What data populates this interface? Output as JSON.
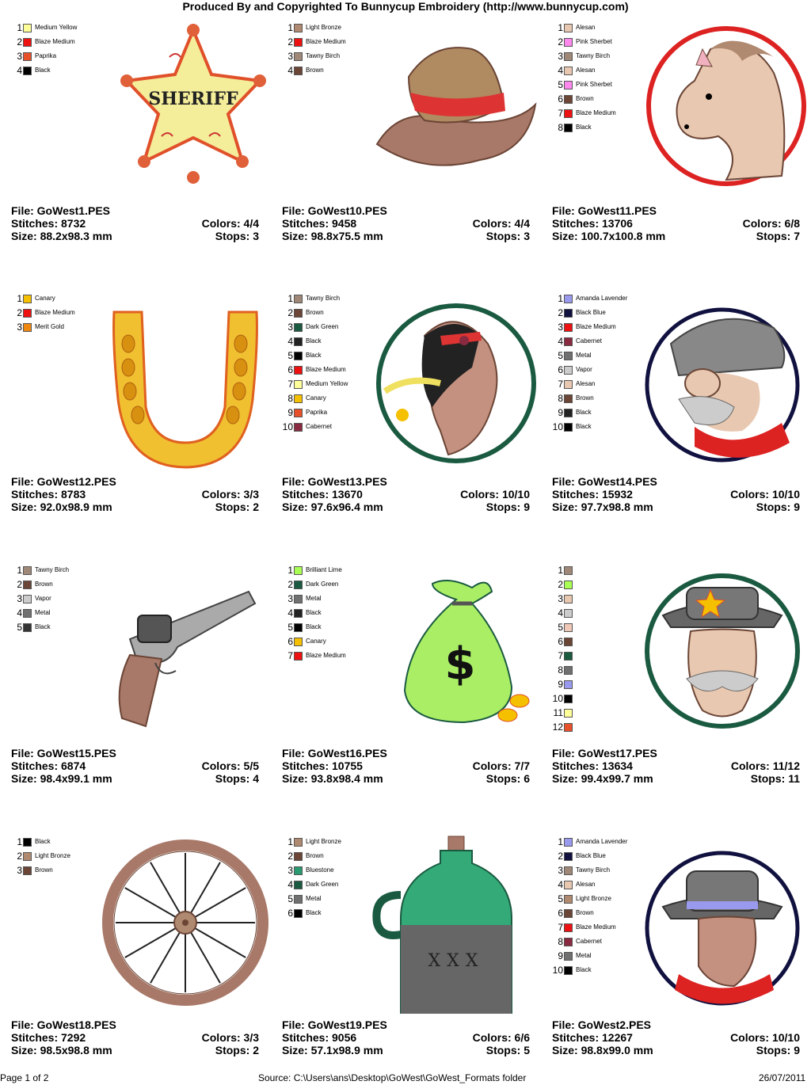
{
  "header": {
    "title": "Produced By and Copyrighted To Bunnycup Embroidery (http://www.bunnycup.com)"
  },
  "labels": {
    "file": "File: ",
    "stitches": "Stitches: ",
    "size": "Size: ",
    "colors": "Colors: ",
    "stops": "Stops: "
  },
  "footer": {
    "page": "Page 1 of 2",
    "source": "Source: C:\\Users\\ans\\Desktop\\GoWest\\GoWest_Formats folder",
    "date": "26/07/2011"
  },
  "designs": [
    {
      "file": "GoWest1.PES",
      "stitches": "8732",
      "size": "88.2x98.3 mm",
      "colors": "4/4",
      "stops": "3",
      "icon": "sheriff-badge",
      "badge_text": "SHERIFF",
      "palette": [
        {
          "n": "1",
          "name": "Medium Yellow",
          "color": "#ffff99"
        },
        {
          "n": "2",
          "name": "Blaze Medium",
          "color": "#ee1111"
        },
        {
          "n": "3",
          "name": "Paprika",
          "color": "#e8502a"
        },
        {
          "n": "4",
          "name": "Black",
          "color": "#000000"
        }
      ]
    },
    {
      "file": "GoWest10.PES",
      "stitches": "9458",
      "size": "98.8x75.5 mm",
      "colors": "4/4",
      "stops": "3",
      "icon": "cowboy-hat",
      "palette": [
        {
          "n": "1",
          "name": "Light Bronze",
          "color": "#b08a70"
        },
        {
          "n": "2",
          "name": "Blaze Medium",
          "color": "#ee1111"
        },
        {
          "n": "3",
          "name": "Tawny Birch",
          "color": "#a08878"
        },
        {
          "n": "4",
          "name": "Brown",
          "color": "#6b4536"
        }
      ]
    },
    {
      "file": "GoWest11.PES",
      "stitches": "13706",
      "size": "100.7x100.8 mm",
      "colors": "6/8",
      "stops": "7",
      "icon": "horse-head",
      "palette": [
        {
          "n": "1",
          "name": "Alesan",
          "color": "#e8c8b0"
        },
        {
          "n": "2",
          "name": "Pink Sherbet",
          "color": "#ff88ee"
        },
        {
          "n": "3",
          "name": "Tawny Birch",
          "color": "#a08878"
        },
        {
          "n": "4",
          "name": "Alesan",
          "color": "#e8c8b0"
        },
        {
          "n": "5",
          "name": "Pink Sherbet",
          "color": "#ff88ee"
        },
        {
          "n": "6",
          "name": "Brown",
          "color": "#6b4536"
        },
        {
          "n": "7",
          "name": "Blaze Medium",
          "color": "#ee1111"
        },
        {
          "n": "8",
          "name": "Black",
          "color": "#000000"
        }
      ]
    },
    {
      "file": "GoWest12.PES",
      "stitches": "8783",
      "size": "92.0x98.9 mm",
      "colors": "3/3",
      "stops": "2",
      "icon": "horseshoe",
      "palette": [
        {
          "n": "1",
          "name": "Canary",
          "color": "#f5c000"
        },
        {
          "n": "2",
          "name": "Blaze Medium",
          "color": "#ee1111"
        },
        {
          "n": "3",
          "name": "Merit Gold",
          "color": "#f08810"
        }
      ]
    },
    {
      "file": "GoWest13.PES",
      "stitches": "13670",
      "size": "97.6x96.4 mm",
      "colors": "10/10",
      "stops": "9",
      "icon": "native-portrait",
      "palette": [
        {
          "n": "1",
          "name": "Tawny Birch",
          "color": "#a08878"
        },
        {
          "n": "2",
          "name": "Brown",
          "color": "#6b4536"
        },
        {
          "n": "3",
          "name": "Dark Green",
          "color": "#1a5a40"
        },
        {
          "n": "4",
          "name": "Black",
          "color": "#222222"
        },
        {
          "n": "5",
          "name": "Black",
          "color": "#000000"
        },
        {
          "n": "6",
          "name": "Blaze Medium",
          "color": "#ee1111"
        },
        {
          "n": "7",
          "name": "Medium Yellow",
          "color": "#ffff99"
        },
        {
          "n": "8",
          "name": "Canary",
          "color": "#f5c000"
        },
        {
          "n": "9",
          "name": "Paprika",
          "color": "#e8502a"
        },
        {
          "n": "10",
          "name": "Cabernet",
          "color": "#8a2a40"
        }
      ]
    },
    {
      "file": "GoWest14.PES",
      "stitches": "15932",
      "size": "97.7x98.8 mm",
      "colors": "10/10",
      "stops": "9",
      "icon": "bandit-portrait",
      "palette": [
        {
          "n": "1",
          "name": "Amanda Lavender",
          "color": "#9999ee"
        },
        {
          "n": "2",
          "name": "Black Blue",
          "color": "#111140"
        },
        {
          "n": "3",
          "name": "Blaze Medium",
          "color": "#ee1111"
        },
        {
          "n": "4",
          "name": "Cabernet",
          "color": "#8a2a40"
        },
        {
          "n": "5",
          "name": "Metal",
          "color": "#707070"
        },
        {
          "n": "6",
          "name": "Vapor",
          "color": "#cccccc"
        },
        {
          "n": "7",
          "name": "Alesan",
          "color": "#e8c8b0"
        },
        {
          "n": "8",
          "name": "Brown",
          "color": "#6b4536"
        },
        {
          "n": "9",
          "name": "Black",
          "color": "#222222"
        },
        {
          "n": "10",
          "name": "Black",
          "color": "#000000"
        }
      ]
    },
    {
      "file": "GoWest15.PES",
      "stitches": "6874",
      "size": "98.4x99.1 mm",
      "colors": "5/5",
      "stops": "4",
      "icon": "revolver",
      "palette": [
        {
          "n": "1",
          "name": "Tawny Birch",
          "color": "#a08878"
        },
        {
          "n": "2",
          "name": "Brown",
          "color": "#6b4536"
        },
        {
          "n": "3",
          "name": "Vapor",
          "color": "#cccccc"
        },
        {
          "n": "4",
          "name": "Metal",
          "color": "#707070"
        },
        {
          "n": "5",
          "name": "Black",
          "color": "#333333"
        }
      ]
    },
    {
      "file": "GoWest16.PES",
      "stitches": "10755",
      "size": "93.8x98.4 mm",
      "colors": "7/7",
      "stops": "6",
      "icon": "money-bag",
      "bag_symbol": "$",
      "palette": [
        {
          "n": "1",
          "name": "Brilliant Lime",
          "color": "#aaff55"
        },
        {
          "n": "2",
          "name": "Dark Green",
          "color": "#1a5a40"
        },
        {
          "n": "3",
          "name": "Metal",
          "color": "#707070"
        },
        {
          "n": "4",
          "name": "Black",
          "color": "#222222"
        },
        {
          "n": "5",
          "name": "Black",
          "color": "#000000"
        },
        {
          "n": "6",
          "name": "Canary",
          "color": "#f5c000"
        },
        {
          "n": "7",
          "name": "Blaze Medium",
          "color": "#ee1111"
        }
      ]
    },
    {
      "file": "GoWest17.PES",
      "stitches": "13634",
      "size": "99.4x99.7 mm",
      "colors": "11/12",
      "stops": "11",
      "icon": "sheriff-portrait",
      "palette": [
        {
          "n": "1",
          "name": "",
          "color": "#a08878"
        },
        {
          "n": "2",
          "name": "",
          "color": "#aaff55"
        },
        {
          "n": "3",
          "name": "",
          "color": "#e8c8b0"
        },
        {
          "n": "4",
          "name": "",
          "color": "#cccccc"
        },
        {
          "n": "5",
          "name": "",
          "color": "#f0c8b8"
        },
        {
          "n": "6",
          "name": "",
          "color": "#6b4536"
        },
        {
          "n": "7",
          "name": "",
          "color": "#1a5a40"
        },
        {
          "n": "8",
          "name": "",
          "color": "#707070"
        },
        {
          "n": "9",
          "name": "",
          "color": "#9999ee"
        },
        {
          "n": "10",
          "name": "",
          "color": "#000000"
        },
        {
          "n": "11",
          "name": "",
          "color": "#ffff99"
        },
        {
          "n": "12",
          "name": "",
          "color": "#e8502a"
        }
      ]
    },
    {
      "file": "GoWest18.PES",
      "stitches": "7292",
      "size": "98.5x98.8 mm",
      "colors": "3/3",
      "stops": "2",
      "icon": "wagon-wheel",
      "palette": [
        {
          "n": "1",
          "name": "Black",
          "color": "#000000"
        },
        {
          "n": "2",
          "name": "Light Bronze",
          "color": "#b08a70"
        },
        {
          "n": "3",
          "name": "Brown",
          "color": "#6b4536"
        }
      ]
    },
    {
      "file": "GoWest19.PES",
      "stitches": "9056",
      "size": "57.1x98.9 mm",
      "colors": "6/6",
      "stops": "5",
      "icon": "moonshine-jug",
      "jug_text": "XXX",
      "palette": [
        {
          "n": "1",
          "name": "Light Bronze",
          "color": "#b08a70"
        },
        {
          "n": "2",
          "name": "Brown",
          "color": "#6b4536"
        },
        {
          "n": "3",
          "name": "Bluestone",
          "color": "#2a9a70"
        },
        {
          "n": "4",
          "name": "Dark Green",
          "color": "#1a5a40"
        },
        {
          "n": "5",
          "name": "Metal",
          "color": "#707070"
        },
        {
          "n": "6",
          "name": "Black",
          "color": "#000000"
        }
      ]
    },
    {
      "file": "GoWest2.PES",
      "stitches": "12267",
      "size": "98.8x99.0 mm",
      "colors": "10/10",
      "stops": "9",
      "icon": "cowboy-portrait",
      "palette": [
        {
          "n": "1",
          "name": "Amanda Lavender",
          "color": "#9999ee"
        },
        {
          "n": "2",
          "name": "Black Blue",
          "color": "#111140"
        },
        {
          "n": "3",
          "name": "Tawny Birch",
          "color": "#a08878"
        },
        {
          "n": "4",
          "name": "Alesan",
          "color": "#e8c8b0"
        },
        {
          "n": "5",
          "name": "Light Bronze",
          "color": "#b08a70"
        },
        {
          "n": "6",
          "name": "Brown",
          "color": "#6b4536"
        },
        {
          "n": "7",
          "name": "Blaze Medium",
          "color": "#ee1111"
        },
        {
          "n": "8",
          "name": "Cabernet",
          "color": "#8a2a40"
        },
        {
          "n": "9",
          "name": "Metal",
          "color": "#707070"
        },
        {
          "n": "10",
          "name": "Black",
          "color": "#000000"
        }
      ]
    }
  ]
}
